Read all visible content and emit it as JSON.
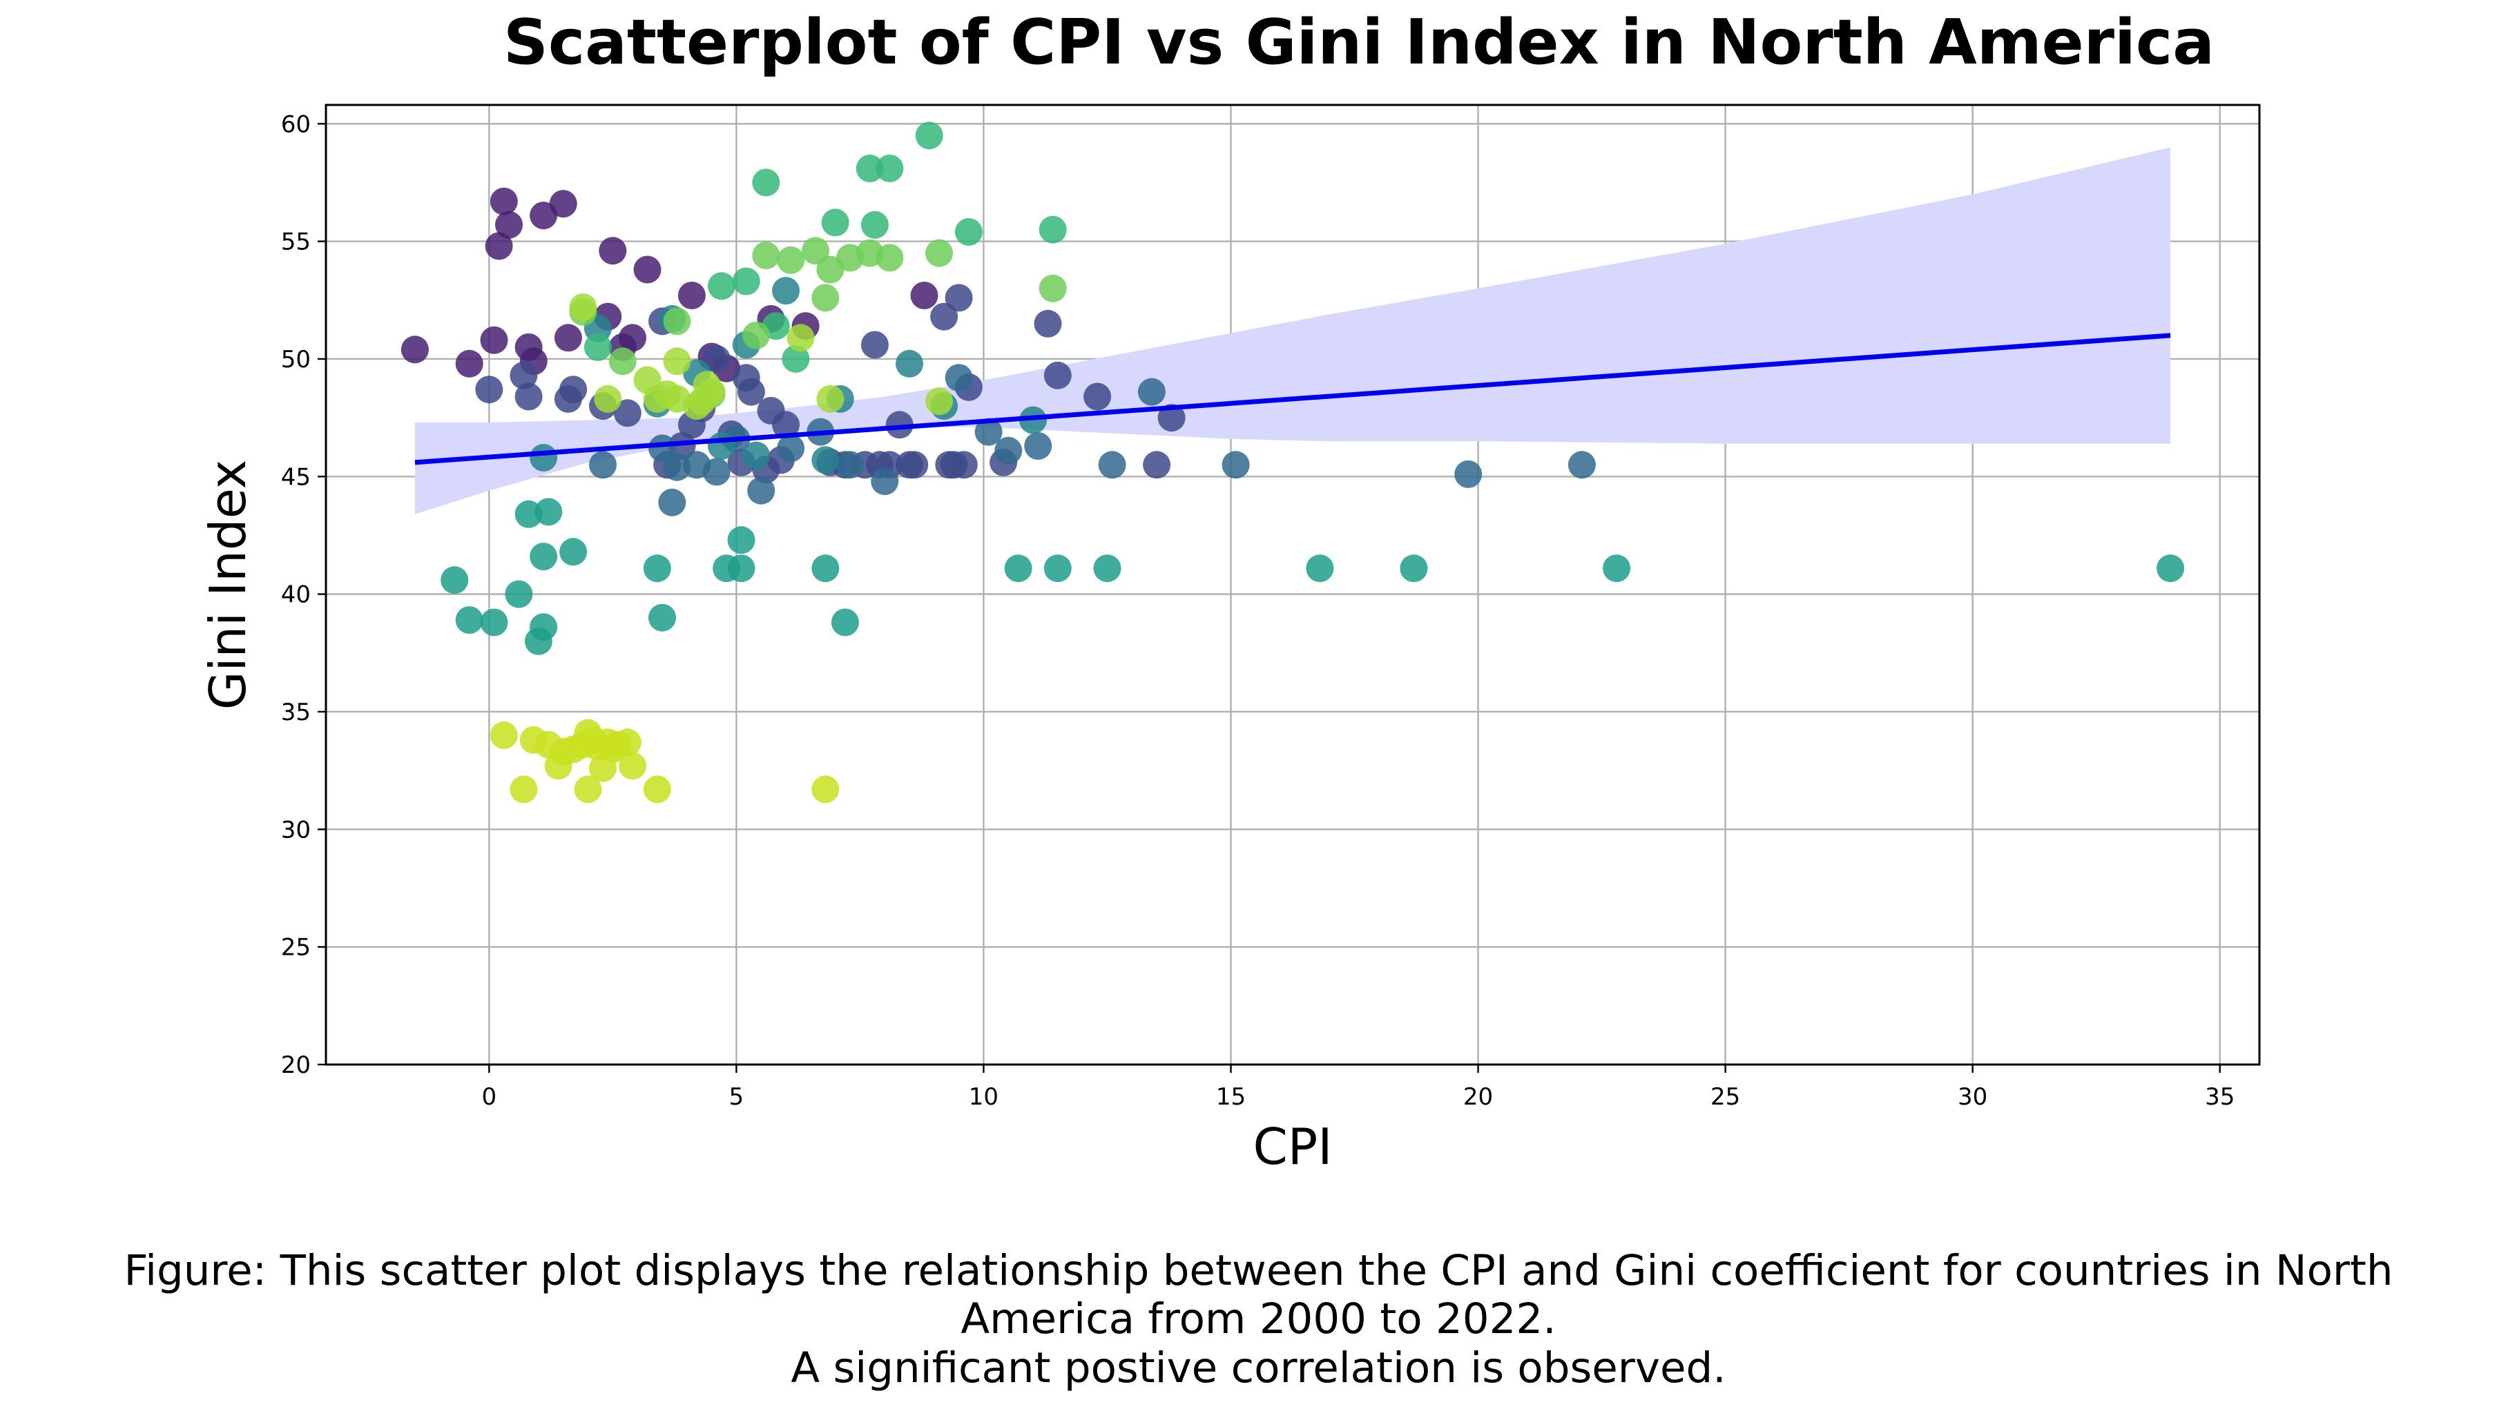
{
  "chart_data": {
    "type": "scatter",
    "title": "Scatterplot of CPI vs Gini Index in North America",
    "xlabel": "CPI",
    "ylabel": "Gini Index",
    "xlim": [
      -3.3,
      35.8
    ],
    "ylim": [
      20,
      60.8
    ],
    "xticks": [
      0,
      5,
      10,
      15,
      20,
      25,
      30,
      35
    ],
    "yticks": [
      20,
      25,
      30,
      35,
      40,
      45,
      50,
      55,
      60
    ],
    "grid": true,
    "regression_line": {
      "x": [
        -1.5,
        34.0
      ],
      "y": [
        45.6,
        51.0
      ],
      "color": "#0000ee"
    },
    "confidence_band": {
      "x": [
        -1.5,
        0,
        2,
        4,
        5,
        6,
        8,
        10,
        12,
        15,
        17,
        20,
        25,
        30,
        34
      ],
      "lower": [
        43.4,
        44.4,
        45.6,
        46.4,
        46.7,
        46.9,
        47.1,
        47.1,
        46.9,
        46.6,
        46.5,
        46.5,
        46.4,
        46.4,
        46.4
      ],
      "upper": [
        47.3,
        47.3,
        47.4,
        47.5,
        47.7,
        47.9,
        48.4,
        49.1,
        49.9,
        51.1,
        51.9,
        53.0,
        54.9,
        57.0,
        59.0
      ],
      "color": "#d8d8ff"
    },
    "series": [
      {
        "color": "#482173",
        "points": [
          [
            -1.5,
            50.4
          ],
          [
            -0.4,
            49.8
          ],
          [
            0.1,
            50.8
          ],
          [
            0.2,
            54.8
          ],
          [
            0.3,
            56.7
          ],
          [
            0.4,
            55.7
          ],
          [
            0.8,
            50.5
          ],
          [
            0.9,
            49.9
          ],
          [
            1.1,
            56.1
          ],
          [
            1.5,
            56.6
          ],
          [
            1.6,
            50.9
          ],
          [
            2.4,
            51.8
          ],
          [
            2.5,
            54.6
          ],
          [
            2.7,
            50.5
          ],
          [
            2.9,
            50.9
          ],
          [
            3.2,
            53.8
          ],
          [
            4.1,
            52.7
          ],
          [
            4.5,
            50.1
          ],
          [
            4.8,
            49.6
          ],
          [
            5.7,
            51.7
          ],
          [
            6.4,
            51.4
          ],
          [
            8.8,
            52.7
          ]
        ]
      },
      {
        "color": "#3e4a89",
        "points": [
          [
            0,
            48.7
          ],
          [
            0.7,
            49.3
          ],
          [
            0.8,
            48.4
          ],
          [
            1.6,
            48.3
          ],
          [
            1.7,
            48.7
          ],
          [
            2.3,
            48.0
          ],
          [
            2.8,
            47.7
          ],
          [
            3.5,
            51.6
          ],
          [
            3.6,
            45.5
          ],
          [
            3.9,
            46.3
          ],
          [
            4.1,
            47.2
          ],
          [
            4.3,
            47.9
          ],
          [
            4.6,
            50.0
          ],
          [
            4.9,
            46.8
          ],
          [
            5.1,
            45.6
          ],
          [
            5.2,
            49.2
          ],
          [
            5.3,
            48.6
          ],
          [
            5.6,
            45.3
          ],
          [
            5.7,
            47.8
          ],
          [
            5.9,
            45.7
          ],
          [
            6.0,
            47.2
          ],
          [
            6.9,
            45.6
          ],
          [
            7.2,
            45.5
          ],
          [
            7.6,
            45.5
          ],
          [
            7.8,
            50.6
          ],
          [
            7.9,
            45.5
          ],
          [
            8.1,
            45.5
          ],
          [
            8.3,
            47.2
          ],
          [
            8.5,
            45.5
          ],
          [
            8.6,
            45.5
          ],
          [
            9.2,
            51.8
          ],
          [
            9.3,
            45.5
          ],
          [
            9.4,
            45.5
          ],
          [
            9.5,
            52.6
          ],
          [
            9.6,
            45.5
          ],
          [
            9.7,
            48.8
          ],
          [
            10.4,
            45.6
          ],
          [
            11.3,
            51.5
          ],
          [
            11.5,
            49.3
          ],
          [
            12.3,
            48.4
          ],
          [
            13.5,
            45.5
          ],
          [
            13.8,
            47.5
          ]
        ]
      },
      {
        "color": "#31688e",
        "points": [
          [
            2.3,
            45.5
          ],
          [
            3.5,
            46.2
          ],
          [
            3.7,
            43.9
          ],
          [
            3.8,
            45.4
          ],
          [
            4.2,
            45.5
          ],
          [
            4.6,
            45.2
          ],
          [
            5.0,
            46.6
          ],
          [
            5.5,
            44.4
          ],
          [
            6.1,
            46.2
          ],
          [
            6.7,
            46.9
          ],
          [
            7.3,
            45.5
          ],
          [
            8.0,
            44.8
          ],
          [
            9.5,
            49.2
          ],
          [
            10.1,
            46.9
          ],
          [
            10.5,
            46.1
          ],
          [
            11.1,
            46.3
          ],
          [
            12.6,
            45.5
          ],
          [
            13.4,
            48.6
          ],
          [
            15.1,
            45.5
          ],
          [
            19.8,
            45.1
          ],
          [
            22.1,
            45.5
          ]
        ]
      },
      {
        "color": "#26828e",
        "points": [
          [
            1.1,
            45.8
          ],
          [
            2.2,
            51.3
          ],
          [
            3.4,
            48.1
          ],
          [
            3.7,
            51.7
          ],
          [
            4.2,
            49.4
          ],
          [
            4.7,
            46.3
          ],
          [
            5.2,
            50.6
          ],
          [
            5.4,
            45.9
          ],
          [
            6.0,
            52.9
          ],
          [
            6.8,
            45.7
          ],
          [
            7.1,
            48.3
          ],
          [
            8.5,
            49.8
          ],
          [
            9.2,
            48.0
          ],
          [
            11.0,
            47.4
          ]
        ]
      },
      {
        "color": "#1f9e89",
        "points": [
          [
            -0.7,
            40.6
          ],
          [
            -0.4,
            38.9
          ],
          [
            0.1,
            38.8
          ],
          [
            0.6,
            40.0
          ],
          [
            0.8,
            43.4
          ],
          [
            1.1,
            41.6
          ],
          [
            1.2,
            43.5
          ],
          [
            1.0,
            38.0
          ],
          [
            1.1,
            38.6
          ],
          [
            1.7,
            41.8
          ],
          [
            3.4,
            41.1
          ],
          [
            3.5,
            39.0
          ],
          [
            4.8,
            41.1
          ],
          [
            5.1,
            42.3
          ],
          [
            5.1,
            41.1
          ],
          [
            6.8,
            41.1
          ],
          [
            7.2,
            38.8
          ],
          [
            10.7,
            41.1
          ],
          [
            11.5,
            41.1
          ],
          [
            12.5,
            41.1
          ],
          [
            16.8,
            41.1
          ],
          [
            18.7,
            41.1
          ],
          [
            22.8,
            41.1
          ],
          [
            34.0,
            41.1
          ]
        ]
      },
      {
        "color": "#35b779",
        "points": [
          [
            2.2,
            50.5
          ],
          [
            4.7,
            53.1
          ],
          [
            5.2,
            53.3
          ],
          [
            5.6,
            57.5
          ],
          [
            5.8,
            51.4
          ],
          [
            6.2,
            50.0
          ],
          [
            7.0,
            55.8
          ],
          [
            7.8,
            55.7
          ],
          [
            7.7,
            58.1
          ],
          [
            8.1,
            58.1
          ],
          [
            8.9,
            59.5
          ],
          [
            9.7,
            55.4
          ],
          [
            11.4,
            55.5
          ]
        ]
      },
      {
        "color": "#6ece58",
        "points": [
          [
            1.9,
            52.0
          ],
          [
            2.7,
            49.9
          ],
          [
            3.8,
            51.6
          ],
          [
            4.5,
            48.5
          ],
          [
            5.4,
            51.0
          ],
          [
            5.6,
            54.4
          ],
          [
            6.1,
            54.2
          ],
          [
            6.6,
            54.6
          ],
          [
            6.8,
            52.6
          ],
          [
            6.9,
            53.8
          ],
          [
            7.3,
            54.3
          ],
          [
            7.7,
            54.5
          ],
          [
            8.1,
            54.3
          ],
          [
            9.1,
            54.5
          ],
          [
            11.4,
            53.0
          ]
        ]
      },
      {
        "color": "#a2da37",
        "points": [
          [
            1.9,
            52.2
          ],
          [
            2.4,
            48.3
          ],
          [
            3.2,
            49.1
          ],
          [
            3.4,
            48.3
          ],
          [
            3.6,
            48.5
          ],
          [
            3.8,
            48.3
          ],
          [
            3.8,
            49.9
          ],
          [
            4.2,
            48.0
          ],
          [
            4.3,
            48.2
          ],
          [
            4.4,
            48.9
          ],
          [
            4.5,
            48.6
          ],
          [
            6.3,
            50.9
          ],
          [
            6.9,
            48.3
          ],
          [
            9.1,
            48.2
          ]
        ]
      },
      {
        "color": "#c9e020",
        "points": [
          [
            0.3,
            34.0
          ],
          [
            0.7,
            31.7
          ],
          [
            0.9,
            33.8
          ],
          [
            1.2,
            33.6
          ],
          [
            1.4,
            32.7
          ],
          [
            1.5,
            33.3
          ],
          [
            1.7,
            33.4
          ],
          [
            1.9,
            33.6
          ],
          [
            2.0,
            34.1
          ],
          [
            2.0,
            31.7
          ],
          [
            2.1,
            33.8
          ],
          [
            2.2,
            33.5
          ],
          [
            2.3,
            32.6
          ],
          [
            2.4,
            33.7
          ],
          [
            2.5,
            33.4
          ],
          [
            2.6,
            33.6
          ],
          [
            2.8,
            33.7
          ],
          [
            2.9,
            32.7
          ],
          [
            3.4,
            31.7
          ],
          [
            6.8,
            31.7
          ]
        ]
      }
    ]
  },
  "caption": {
    "line1": "Figure: This scatter plot displays the relationship between the CPI and Gini coefficient for countries in North",
    "line2": "America from 2000 to 2022.",
    "line3": "A significant postive correlation is observed."
  }
}
